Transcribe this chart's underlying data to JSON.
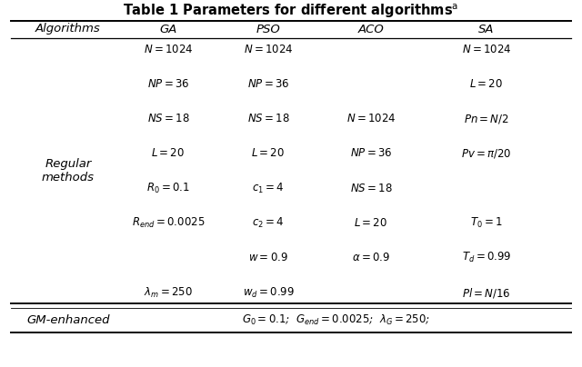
{
  "title": "Table 1 Parameters for different algorithms",
  "col_headers": [
    "Algorithms",
    "GA",
    "PSO",
    "ACO",
    "SA"
  ],
  "ga_params": [
    "$N =1024$",
    "$NP =36$",
    "$NS =18$",
    "$L =20$",
    "$R_{0} =0.1$",
    "$R_{end} =0.0025$",
    "",
    "$\\lambda_{m} =250$"
  ],
  "pso_params": [
    "$N =1024$",
    "$NP =36$",
    "$NS =18$",
    "$L =20$",
    "$c_{1} =4$",
    "$c_{2} =4$",
    "$w =0.9$",
    "$w_{d} =0.99$"
  ],
  "aco_params": [
    "",
    "",
    "$N =1024$",
    "$NP =36$",
    "$NS =18$",
    "$L =20$",
    "$\\alpha=0.9$",
    ""
  ],
  "sa_params": [
    "$N =1024$",
    "$L =20$",
    "$Pn=N/2$",
    "$Pv=\\pi /20$",
    "",
    "$T_{0} =1$",
    "$T_{d} =0.99$",
    "$Pl=N/16$"
  ],
  "row1_label": "Regular\nmethods",
  "gm_label": "GM-enhanced",
  "gm_params": "$G_{0} =0.1$;  $G_{end} =0.0025$;  $\\lambda_{G} =250$;",
  "bg_color": "#ffffff",
  "text_color": "#000000",
  "fig_w": 6.4,
  "fig_h": 4.04,
  "dpi": 100
}
